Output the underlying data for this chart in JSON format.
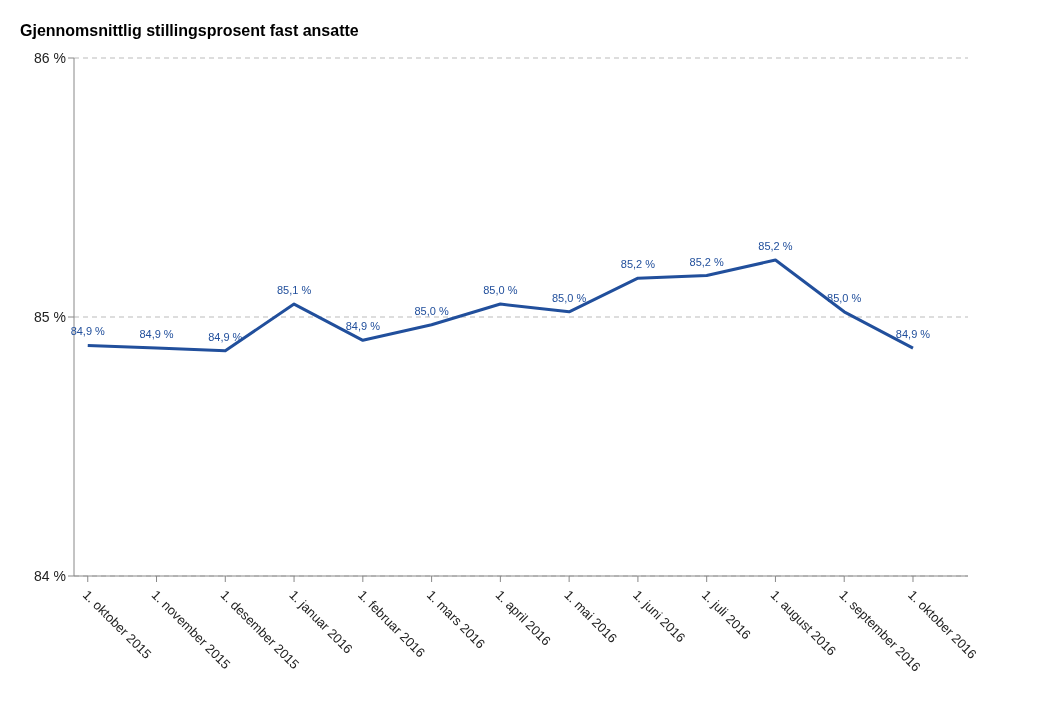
{
  "chart_data": {
    "type": "line",
    "title": "Gjennomsnittlig stillingsprosent fast ansatte",
    "categories": [
      "1. oktober 2015",
      "1. november 2015",
      "1. desember 2015",
      "1. januar 2016",
      "1. februar 2016",
      "1. mars 2016",
      "1. april 2016",
      "1. mai 2016",
      "1. juni 2016",
      "1. juli 2016",
      "1. august 2016",
      "1. september 2016",
      "1. oktober 2016"
    ],
    "series": [
      {
        "color": "#214f9c",
        "values": [
          84.89,
          84.88,
          84.87,
          85.05,
          84.91,
          84.97,
          85.05,
          85.02,
          85.15,
          85.16,
          85.22,
          85.02,
          84.88
        ],
        "value_labels": [
          "84,9 %",
          "84,9 %",
          "84,9 %",
          "85,1 %",
          "84,9 %",
          "85,0 %",
          "85,0 %",
          "85,0 %",
          "85,2 %",
          "85,2 %",
          "85,2 %",
          "85,0 %",
          "84,9 %"
        ]
      }
    ],
    "ylim": [
      84,
      86
    ],
    "yticks": [
      {
        "value": 84,
        "label": "84 %"
      },
      {
        "value": 85,
        "label": "85 %"
      },
      {
        "value": 86,
        "label": "86 %"
      }
    ],
    "grid": "y",
    "marker": "none",
    "line_style": "solid"
  }
}
